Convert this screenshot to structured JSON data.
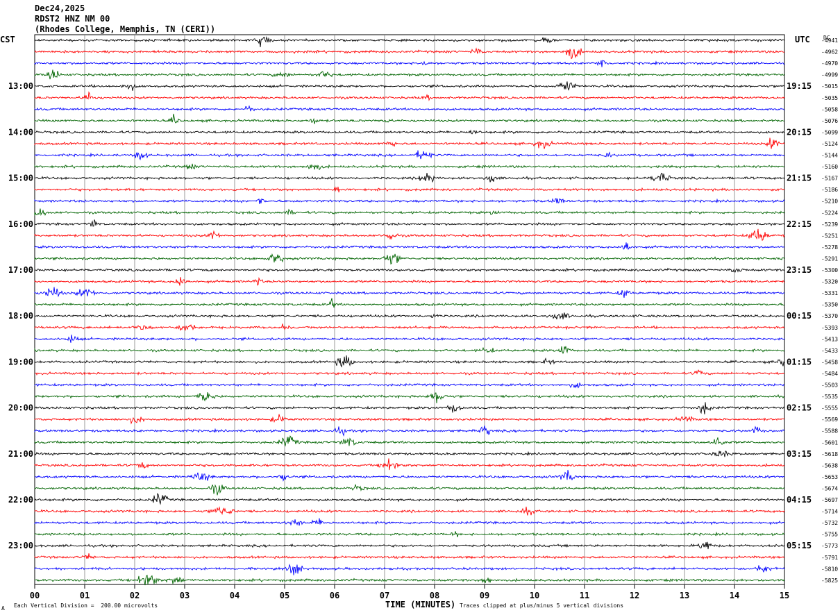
{
  "header": {
    "date": "Dec24,2025",
    "station": "RDST2 HNZ NM 00",
    "site": "(Rhodes College, Memphis, TN (CERI))"
  },
  "left_zone_label": "CST",
  "right_zone_label": "UTC",
  "dc_label": "DC",
  "footer": {
    "scale_note": "Each Vertical Division =  200.00 microvolts",
    "clip_note": "Traces clipped at plus/minus 5 vertical divisions",
    "corner_mark": "A"
  },
  "chart_data": {
    "type": "line",
    "title": "",
    "xlabel": "TIME (MINUTES)",
    "ylabel": "",
    "x_ticks": [
      "00",
      "01",
      "02",
      "03",
      "04",
      "05",
      "06",
      "07",
      "08",
      "09",
      "10",
      "11",
      "12",
      "13",
      "14",
      "15"
    ],
    "xlim": [
      0,
      15
    ],
    "grid": true,
    "trace_colors": [
      "#000000",
      "#ff0000",
      "#0000ff",
      "#006400"
    ],
    "left_hour_labels": [
      "13:00",
      "14:00",
      "15:00",
      "16:00",
      "17:00",
      "18:00",
      "19:00",
      "20:00",
      "21:00",
      "22:00",
      "23:00"
    ],
    "right_hour_labels": [
      "19:15",
      "20:15",
      "21:15",
      "22:15",
      "23:15",
      "00:15",
      "01:15",
      "02:15",
      "03:15",
      "04:15",
      "05:15"
    ],
    "dc_offsets": [
      "-4941",
      "-4962",
      "-4970",
      "-4999",
      "-5015",
      "-5035",
      "-5058",
      "-5076",
      "-5099",
      "-5124",
      "-5144",
      "-5160",
      "-5167",
      "-5186",
      "-5210",
      "-5224",
      "-5239",
      "-5251",
      "-5278",
      "-5291",
      "-5300",
      "-5320",
      "-5331",
      "-5350",
      "-5370",
      "-5393",
      "-5413",
      "-5433",
      "-5458",
      "-5484",
      "-5503",
      "-5535",
      "-5555",
      "-5569",
      "-5588",
      "-5601",
      "-5618",
      "-5638",
      "-5653",
      "-5674",
      "-5697",
      "-5714",
      "-5732",
      "-5755",
      "-5773",
      "-5791",
      "-5810",
      "-5825"
    ]
  }
}
